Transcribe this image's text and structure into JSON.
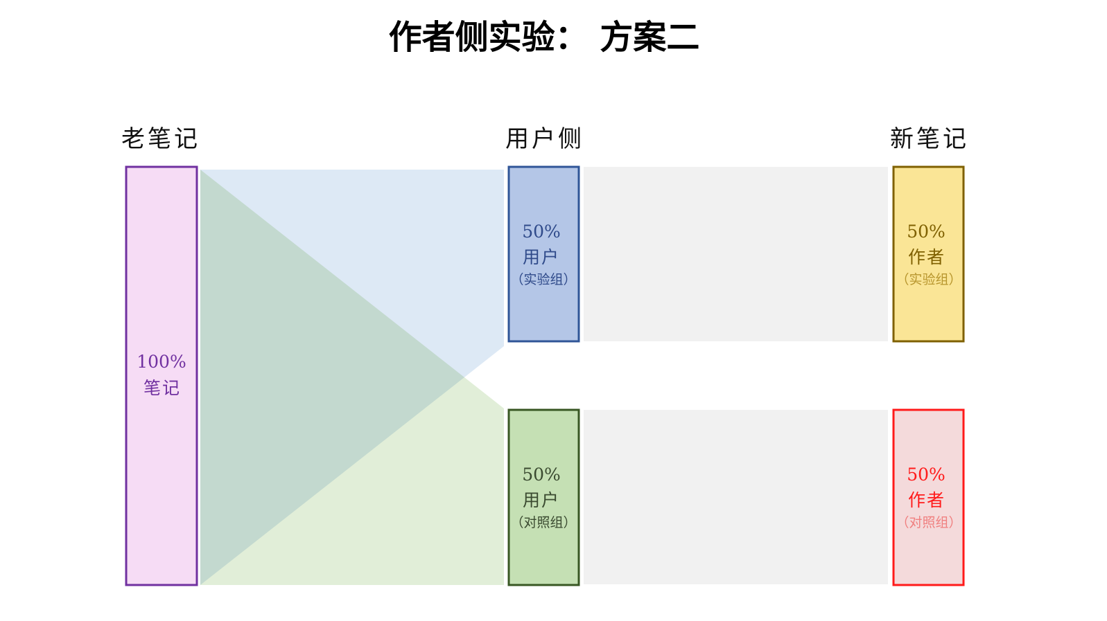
{
  "title": "作者侧实验： 方案二",
  "columns": {
    "left": "老笔记",
    "middle": "用户侧",
    "right": "新笔记"
  },
  "nodes": {
    "old": {
      "pct": "100%",
      "label": "笔记",
      "fill": "#f6dcf5",
      "stroke": "#7030a0",
      "text": "#7030a0"
    },
    "user_exp": {
      "pct": "50%",
      "label": "用户",
      "sub": "（实验组）",
      "fill": "#b4c6e7",
      "stroke": "#2f5597",
      "text": "#2f4a8a"
    },
    "user_ctrl": {
      "pct": "50%",
      "label": "用户",
      "sub": "（对照组）",
      "fill": "#c5e0b4",
      "stroke": "#385723",
      "text": "#3a4a30"
    },
    "author_exp": {
      "pct": "50%",
      "label": "作者",
      "sub": "（实验组）",
      "fill": "#fae596",
      "stroke": "#7f6000",
      "text": "#7f6000",
      "sub_text": "#b8962e"
    },
    "author_ctrl": {
      "pct": "50%",
      "label": "作者",
      "sub": "（对照组）",
      "fill": "#f4dadb",
      "stroke": "#ff1a1a",
      "text": "#ff1a1a",
      "sub_text": "#f08080"
    }
  },
  "flows": {
    "to_exp": "#dde9f5",
    "to_ctrl": "#e1eed8",
    "band": "#f1f1f1"
  }
}
